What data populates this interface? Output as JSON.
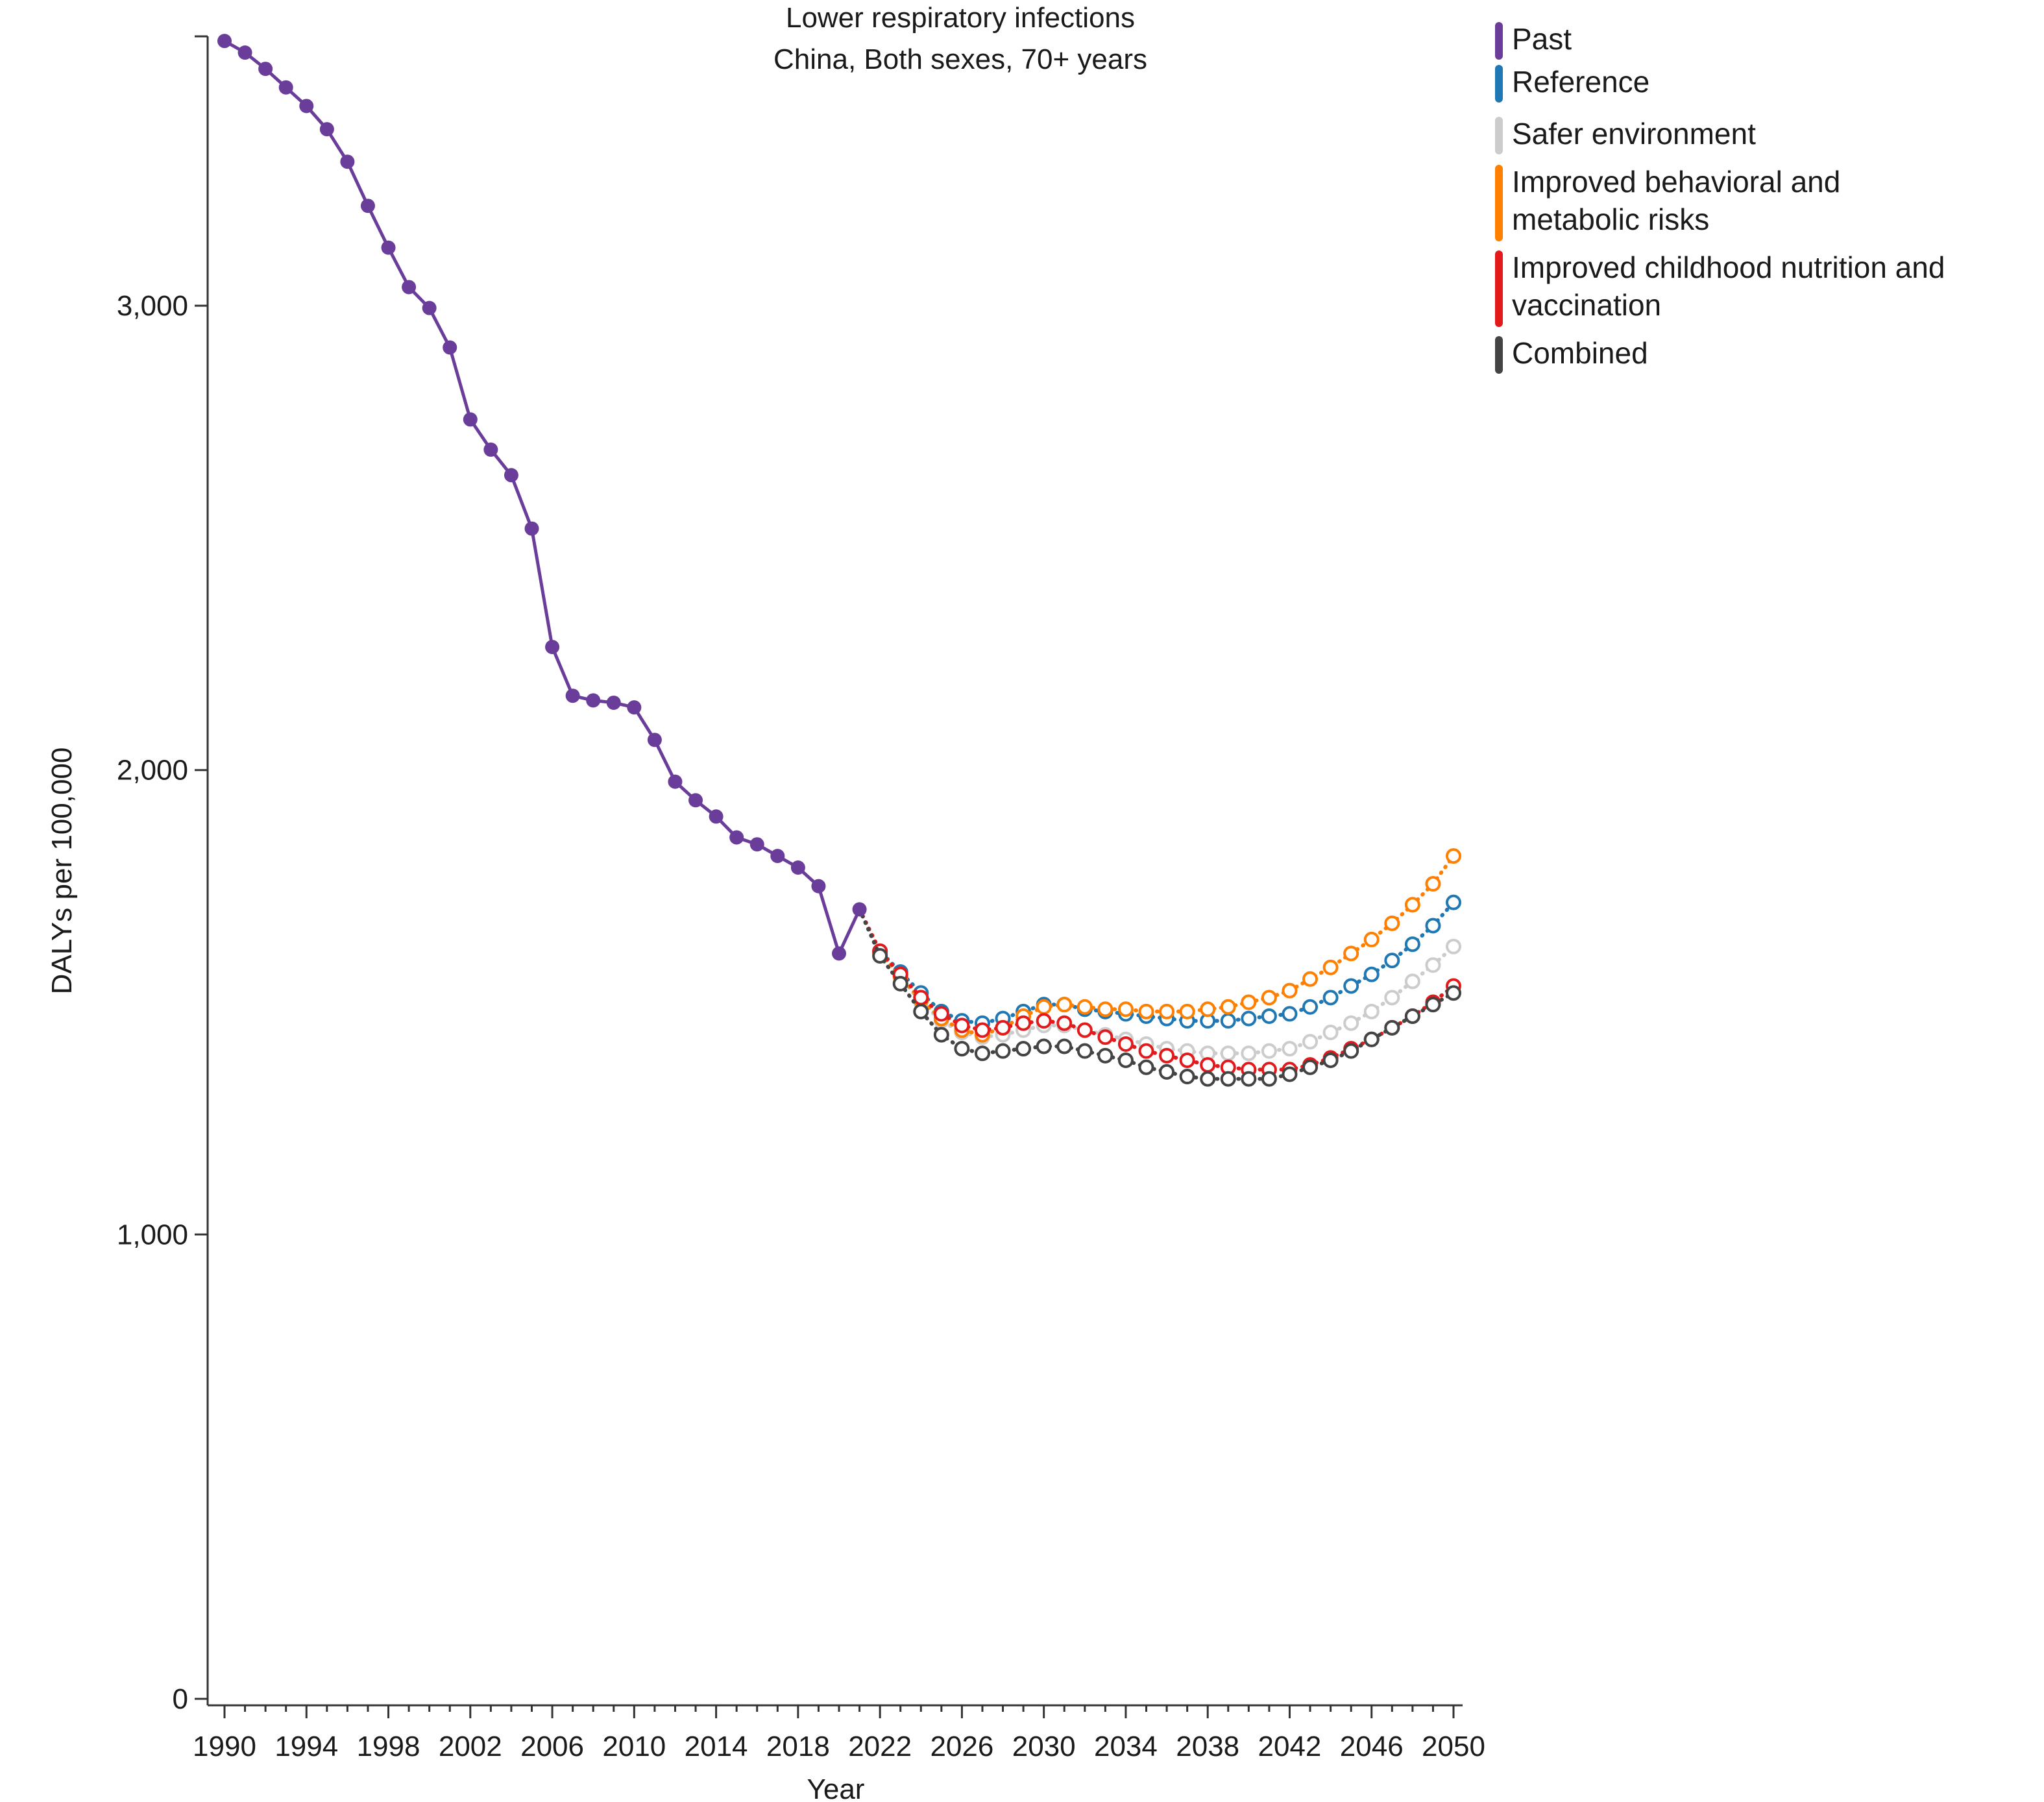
{
  "chart_data": {
    "type": "line",
    "title": "Lower respiratory infections",
    "subtitle": "China, Both sexes, 70+ years",
    "xlabel": "Year",
    "ylabel": "DALYs per 100,000",
    "xlim": [
      1990,
      2050
    ],
    "ylim": [
      0,
      3580
    ],
    "x_ticks": [
      1990,
      1994,
      1998,
      2002,
      2006,
      2010,
      2014,
      2018,
      2022,
      2026,
      2030,
      2034,
      2038,
      2042,
      2046,
      2050
    ],
    "x_tick_labels": [
      "1990",
      "1994",
      "1998",
      "2002",
      "2006",
      "2010",
      "2014",
      "2018",
      "2022",
      "2026",
      "2030",
      "2034",
      "2038",
      "2042",
      "2046",
      "2050"
    ],
    "y_ticks": [
      0,
      1000,
      2000,
      3000
    ],
    "y_tick_labels": [
      "0",
      "1,000",
      "2,000",
      "3,000"
    ],
    "grid": false,
    "legend_position": "top-right",
    "series": [
      {
        "name": "Past",
        "color": "#6a3d9a",
        "style": "solid-filled",
        "x": [
          1990,
          1991,
          1992,
          1993,
          1994,
          1995,
          1996,
          1997,
          1998,
          1999,
          2000,
          2001,
          2002,
          2003,
          2004,
          2005,
          2006,
          2007,
          2008,
          2009,
          2010,
          2011,
          2012,
          2013,
          2014,
          2015,
          2016,
          2017,
          2018,
          2019,
          2020,
          2021
        ],
        "values": [
          3570,
          3545,
          3510,
          3470,
          3430,
          3380,
          3310,
          3215,
          3125,
          3040,
          2995,
          2910,
          2755,
          2690,
          2635,
          2520,
          2265,
          2160,
          2150,
          2145,
          2135,
          2065,
          1975,
          1935,
          1900,
          1855,
          1840,
          1815,
          1790,
          1750,
          1605,
          1700
        ]
      },
      {
        "name": "Reference",
        "color": "#1f78b4",
        "style": "dotted-open",
        "x": [
          2021,
          2022,
          2023,
          2024,
          2025,
          2026,
          2027,
          2028,
          2029,
          2030,
          2031,
          2032,
          2033,
          2034,
          2035,
          2036,
          2037,
          2038,
          2039,
          2040,
          2041,
          2042,
          2043,
          2044,
          2045,
          2046,
          2047,
          2048,
          2049,
          2050
        ],
        "values": [
          1700,
          1610,
          1565,
          1520,
          1480,
          1460,
          1455,
          1465,
          1480,
          1495,
          1495,
          1485,
          1480,
          1475,
          1470,
          1465,
          1460,
          1460,
          1460,
          1465,
          1470,
          1475,
          1490,
          1510,
          1535,
          1560,
          1590,
          1625,
          1665,
          1715
        ]
      },
      {
        "name": "Safer environment",
        "color": "#cccccc",
        "style": "dotted-open",
        "x": [
          2021,
          2022,
          2023,
          2024,
          2025,
          2026,
          2027,
          2028,
          2029,
          2030,
          2031,
          2032,
          2033,
          2034,
          2035,
          2036,
          2037,
          2038,
          2039,
          2040,
          2041,
          2042,
          2043,
          2044,
          2045,
          2046,
          2047,
          2048,
          2049,
          2050
        ],
        "values": [
          1700,
          1605,
          1555,
          1500,
          1460,
          1435,
          1425,
          1430,
          1440,
          1450,
          1450,
          1440,
          1430,
          1420,
          1410,
          1400,
          1395,
          1390,
          1390,
          1390,
          1395,
          1400,
          1415,
          1435,
          1455,
          1480,
          1510,
          1545,
          1580,
          1620
        ]
      },
      {
        "name": "Improved behavioral and metabolic risks",
        "color": "#ff7f00",
        "style": "dotted-open",
        "x": [
          2021,
          2022,
          2023,
          2024,
          2025,
          2026,
          2027,
          2028,
          2029,
          2030,
          2031,
          2032,
          2033,
          2034,
          2035,
          2036,
          2037,
          2038,
          2039,
          2040,
          2041,
          2042,
          2043,
          2044,
          2045,
          2046,
          2047,
          2048,
          2049,
          2050
        ],
        "values": [
          1700,
          1605,
          1555,
          1505,
          1465,
          1440,
          1430,
          1445,
          1470,
          1490,
          1495,
          1490,
          1485,
          1485,
          1480,
          1480,
          1480,
          1485,
          1490,
          1500,
          1510,
          1525,
          1550,
          1575,
          1605,
          1635,
          1670,
          1710,
          1755,
          1815
        ]
      },
      {
        "name": "Improved childhood nutrition and vaccination",
        "color": "#e31a1c",
        "style": "dotted-open",
        "x": [
          2021,
          2022,
          2023,
          2024,
          2025,
          2026,
          2027,
          2028,
          2029,
          2030,
          2031,
          2032,
          2033,
          2034,
          2035,
          2036,
          2037,
          2038,
          2039,
          2040,
          2041,
          2042,
          2043,
          2044,
          2045,
          2046,
          2047,
          2048,
          2049,
          2050
        ],
        "values": [
          1700,
          1610,
          1560,
          1510,
          1475,
          1450,
          1440,
          1445,
          1455,
          1460,
          1455,
          1440,
          1425,
          1410,
          1395,
          1385,
          1375,
          1365,
          1360,
          1355,
          1355,
          1355,
          1365,
          1380,
          1400,
          1420,
          1445,
          1470,
          1500,
          1535
        ]
      },
      {
        "name": "Combined",
        "color": "#444444",
        "style": "dotted-open",
        "x": [
          2021,
          2022,
          2023,
          2024,
          2025,
          2026,
          2027,
          2028,
          2029,
          2030,
          2031,
          2032,
          2033,
          2034,
          2035,
          2036,
          2037,
          2038,
          2039,
          2040,
          2041,
          2042,
          2043,
          2044,
          2045,
          2046,
          2047,
          2048,
          2049,
          2050
        ],
        "values": [
          1700,
          1600,
          1540,
          1480,
          1430,
          1400,
          1390,
          1395,
          1400,
          1405,
          1405,
          1395,
          1385,
          1375,
          1360,
          1350,
          1340,
          1335,
          1335,
          1335,
          1335,
          1345,
          1360,
          1375,
          1395,
          1420,
          1445,
          1470,
          1495,
          1520
        ]
      }
    ]
  }
}
